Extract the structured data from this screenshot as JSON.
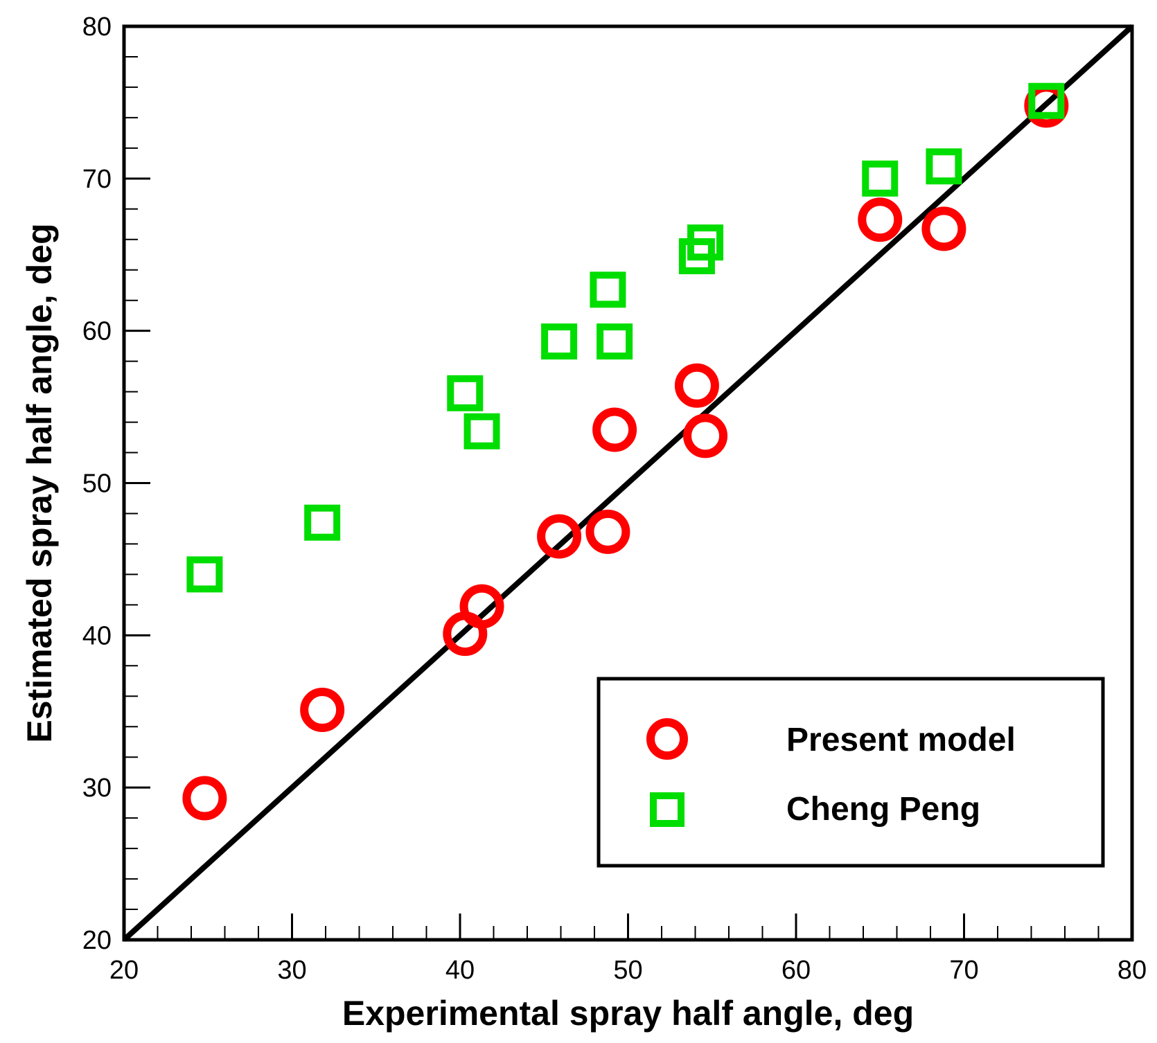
{
  "chart_data": {
    "type": "scatter",
    "title": "",
    "xlabel": "Experimental spray half angle, deg",
    "ylabel": "Estimated spray half angle, deg",
    "xlim": [
      20,
      80
    ],
    "ylim": [
      20,
      80
    ],
    "xticks": [
      20,
      30,
      40,
      50,
      60,
      70,
      80
    ],
    "yticks": [
      20,
      30,
      40,
      50,
      60,
      70,
      80
    ],
    "minor_tick_step": 2,
    "grid": false,
    "reference_line": {
      "x": [
        20,
        80
      ],
      "y": [
        20,
        80
      ],
      "color": "#000000"
    },
    "legend_position": "bottom-right",
    "series": [
      {
        "name": "Present model",
        "marker": "circle",
        "color": "#ff0000",
        "x": [
          24.8,
          31.8,
          40.3,
          41.3,
          45.9,
          48.8,
          49.2,
          54.1,
          54.6,
          65.0,
          68.8,
          74.9
        ],
        "y": [
          29.3,
          35.1,
          40.1,
          41.9,
          46.5,
          46.8,
          53.5,
          56.4,
          53.1,
          67.3,
          66.7,
          74.8
        ]
      },
      {
        "name": "Cheng Peng",
        "marker": "square",
        "color": "#00dd00",
        "x": [
          24.8,
          31.8,
          40.3,
          41.3,
          45.9,
          48.8,
          49.2,
          54.1,
          54.6,
          65.0,
          68.8,
          74.9
        ],
        "y": [
          44.0,
          47.4,
          55.9,
          53.4,
          59.3,
          62.7,
          59.3,
          64.9,
          65.8,
          70.0,
          70.8,
          75.1
        ]
      }
    ]
  }
}
